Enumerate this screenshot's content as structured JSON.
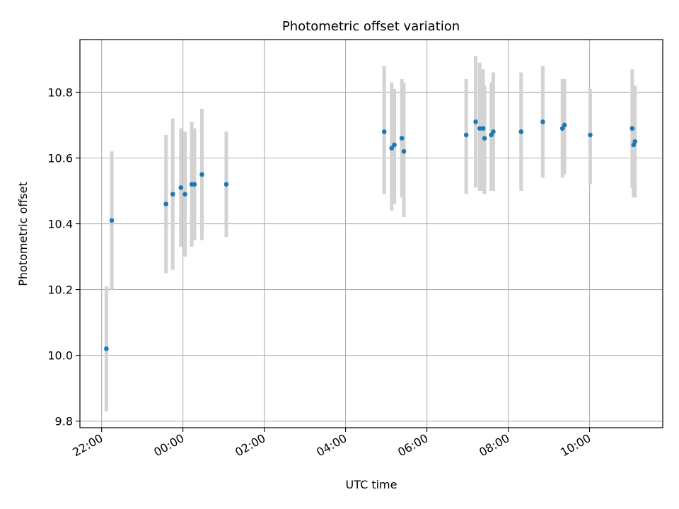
{
  "chart_data": {
    "type": "scatter",
    "title": "Photometric offset variation",
    "xlabel": "UTC time",
    "ylabel": "Photometric offset",
    "x_axis_kind": "time",
    "x_start_day": "previous day",
    "xlim": [
      "21:28",
      "11:48"
    ],
    "ylim": [
      9.78,
      10.96
    ],
    "x_ticks": [
      "22:00",
      "00:00",
      "02:00",
      "04:00",
      "06:00",
      "08:00",
      "10:00"
    ],
    "y_ticks": [
      9.8,
      10.0,
      10.2,
      10.4,
      10.6,
      10.8
    ],
    "grid": true,
    "point_color": "#1f77b4",
    "errorbar_color": "#d3d3d3",
    "series": [
      {
        "points": [
          {
            "x": "22:07",
            "y": 10.02,
            "low": 9.83,
            "high": 10.21
          },
          {
            "x": "22:15",
            "y": 10.41,
            "low": 10.2,
            "high": 10.62
          },
          {
            "x": "23:35",
            "y": 10.46,
            "low": 10.25,
            "high": 10.67
          },
          {
            "x": "23:45",
            "y": 10.49,
            "low": 10.26,
            "high": 10.72
          },
          {
            "x": "23:57",
            "y": 10.51,
            "low": 10.33,
            "high": 10.69
          },
          {
            "x": "00:03",
            "y": 10.49,
            "low": 10.3,
            "high": 10.68
          },
          {
            "x": "00:13",
            "y": 10.52,
            "low": 10.33,
            "high": 10.71
          },
          {
            "x": "00:17",
            "y": 10.52,
            "low": 10.35,
            "high": 10.69
          },
          {
            "x": "00:28",
            "y": 10.55,
            "low": 10.35,
            "high": 10.75
          },
          {
            "x": "01:04",
            "y": 10.52,
            "low": 10.36,
            "high": 10.68
          },
          {
            "x": "04:57",
            "y": 10.68,
            "low": 10.49,
            "high": 10.88
          },
          {
            "x": "05:08",
            "y": 10.63,
            "low": 10.44,
            "high": 10.83
          },
          {
            "x": "05:12",
            "y": 10.64,
            "low": 10.46,
            "high": 10.81
          },
          {
            "x": "05:23",
            "y": 10.66,
            "low": 10.48,
            "high": 10.84
          },
          {
            "x": "05:26",
            "y": 10.62,
            "low": 10.42,
            "high": 10.83
          },
          {
            "x": "06:58",
            "y": 10.67,
            "low": 10.49,
            "high": 10.84
          },
          {
            "x": "07:12",
            "y": 10.71,
            "low": 10.51,
            "high": 10.91
          },
          {
            "x": "07:18",
            "y": 10.69,
            "low": 10.5,
            "high": 10.89
          },
          {
            "x": "07:23",
            "y": 10.69,
            "low": 10.5,
            "high": 10.87
          },
          {
            "x": "07:25",
            "y": 10.66,
            "low": 10.49,
            "high": 10.82
          },
          {
            "x": "07:35",
            "y": 10.67,
            "low": 10.5,
            "high": 10.83
          },
          {
            "x": "07:38",
            "y": 10.68,
            "low": 10.5,
            "high": 10.86
          },
          {
            "x": "08:19",
            "y": 10.68,
            "low": 10.5,
            "high": 10.86
          },
          {
            "x": "08:51",
            "y": 10.71,
            "low": 10.54,
            "high": 10.88
          },
          {
            "x": "09:20",
            "y": 10.69,
            "low": 10.54,
            "high": 10.84
          },
          {
            "x": "09:23",
            "y": 10.7,
            "low": 10.55,
            "high": 10.84
          },
          {
            "x": "10:01",
            "y": 10.67,
            "low": 10.52,
            "high": 10.81
          },
          {
            "x": "11:03",
            "y": 10.69,
            "low": 10.51,
            "high": 10.87
          },
          {
            "x": "11:05",
            "y": 10.64,
            "low": 10.48,
            "high": 10.8
          },
          {
            "x": "11:07",
            "y": 10.65,
            "low": 10.48,
            "high": 10.82
          }
        ]
      }
    ]
  }
}
